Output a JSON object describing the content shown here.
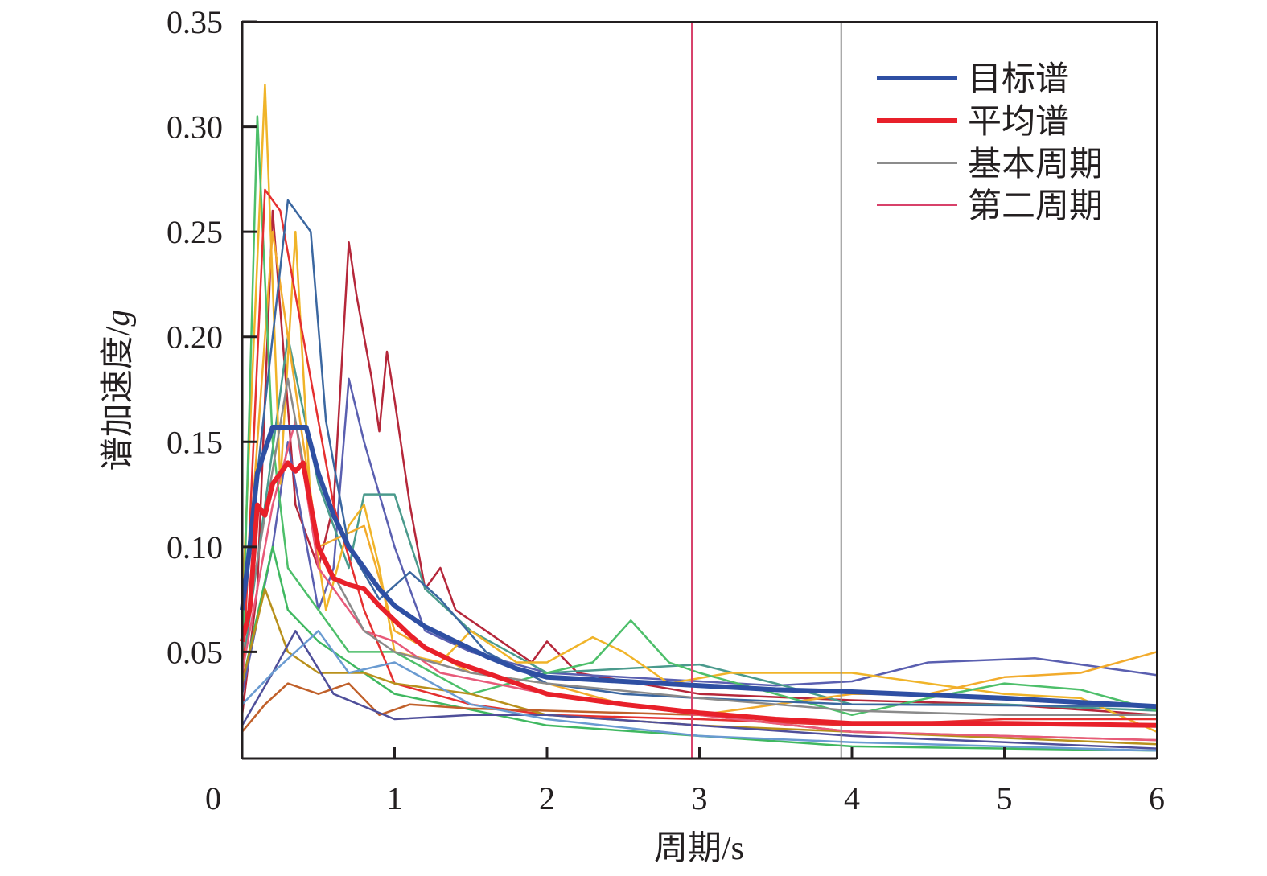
{
  "chart_data": {
    "type": "line",
    "xlabel": "周期/s",
    "ylabel": "谱加速度/",
    "ylabel_unit": "g",
    "xlim": [
      0,
      6
    ],
    "ylim": [
      0,
      0.35
    ],
    "x_ticks": [
      "0",
      "1",
      "2",
      "3",
      "4",
      "5",
      "6"
    ],
    "y_ticks": [
      "0.05",
      "0.10",
      "0.15",
      "0.20",
      "0.25",
      "0.30",
      "0.35"
    ],
    "grid": false,
    "legend_position": "top-right",
    "legend": [
      {
        "label": "目标谱",
        "color": "#2e4fa3"
      },
      {
        "label": "平均谱",
        "color": "#e8202a"
      },
      {
        "label": "基本周期",
        "color": "#8c8c8c"
      },
      {
        "label": "第二周期",
        "color": "#d8416a"
      }
    ],
    "vertical_lines": [
      {
        "name": "基本周期",
        "x": 3.93,
        "color": "#8c8c8c"
      },
      {
        "name": "第二周期",
        "x": 2.95,
        "color": "#d8416a"
      }
    ],
    "target_spectrum": {
      "name": "目标谱",
      "color": "#2e4fa3",
      "points": [
        [
          0,
          0.07
        ],
        [
          0.05,
          0.1
        ],
        [
          0.1,
          0.135
        ],
        [
          0.2,
          0.157
        ],
        [
          0.42,
          0.157
        ],
        [
          0.5,
          0.135
        ],
        [
          0.6,
          0.115
        ],
        [
          0.7,
          0.1
        ],
        [
          0.8,
          0.09
        ],
        [
          0.9,
          0.08
        ],
        [
          1.0,
          0.072
        ],
        [
          1.2,
          0.062
        ],
        [
          1.4,
          0.055
        ],
        [
          1.6,
          0.048
        ],
        [
          1.8,
          0.042
        ],
        [
          2.0,
          0.038
        ],
        [
          2.5,
          0.036
        ],
        [
          3.0,
          0.034
        ],
        [
          3.5,
          0.032
        ],
        [
          4.0,
          0.031
        ],
        [
          5.0,
          0.028
        ],
        [
          6.0,
          0.024
        ]
      ]
    },
    "mean_spectrum": {
      "name": "平均谱",
      "color": "#e8202a",
      "points": [
        [
          0,
          0.055
        ],
        [
          0.05,
          0.07
        ],
        [
          0.1,
          0.12
        ],
        [
          0.15,
          0.115
        ],
        [
          0.2,
          0.13
        ],
        [
          0.3,
          0.14
        ],
        [
          0.35,
          0.136
        ],
        [
          0.4,
          0.14
        ],
        [
          0.45,
          0.12
        ],
        [
          0.5,
          0.1
        ],
        [
          0.6,
          0.085
        ],
        [
          0.7,
          0.082
        ],
        [
          0.8,
          0.08
        ],
        [
          0.9,
          0.072
        ],
        [
          1.0,
          0.065
        ],
        [
          1.1,
          0.058
        ],
        [
          1.2,
          0.052
        ],
        [
          1.4,
          0.045
        ],
        [
          1.6,
          0.04
        ],
        [
          1.8,
          0.035
        ],
        [
          2.0,
          0.03
        ],
        [
          2.5,
          0.025
        ],
        [
          3.0,
          0.021
        ],
        [
          3.5,
          0.018
        ],
        [
          4.0,
          0.016
        ],
        [
          4.5,
          0.016
        ],
        [
          5.0,
          0.016
        ],
        [
          6.0,
          0.015
        ]
      ]
    },
    "records": [
      {
        "color": "#b5273a",
        "points": [
          [
            0,
            0.02
          ],
          [
            0.1,
            0.08
          ],
          [
            0.2,
            0.26
          ],
          [
            0.35,
            0.12
          ],
          [
            0.5,
            0.09
          ],
          [
            0.6,
            0.12
          ],
          [
            0.7,
            0.245
          ],
          [
            0.75,
            0.22
          ],
          [
            0.85,
            0.18
          ],
          [
            0.9,
            0.155
          ],
          [
            0.95,
            0.193
          ],
          [
            1.0,
            0.17
          ],
          [
            1.1,
            0.12
          ],
          [
            1.2,
            0.08
          ],
          [
            1.3,
            0.09
          ],
          [
            1.4,
            0.07
          ],
          [
            1.6,
            0.06
          ],
          [
            1.9,
            0.045
          ],
          [
            2.0,
            0.055
          ],
          [
            2.2,
            0.04
          ],
          [
            3.0,
            0.03
          ],
          [
            4.0,
            0.027
          ],
          [
            5.0,
            0.025
          ],
          [
            6.0,
            0.02
          ]
        ]
      },
      {
        "color": "#5a5fb0",
        "points": [
          [
            0,
            0.03
          ],
          [
            0.2,
            0.1
          ],
          [
            0.3,
            0.15
          ],
          [
            0.5,
            0.07
          ],
          [
            0.6,
            0.09
          ],
          [
            0.7,
            0.18
          ],
          [
            0.8,
            0.15
          ],
          [
            1.0,
            0.1
          ],
          [
            1.2,
            0.06
          ],
          [
            1.5,
            0.05
          ],
          [
            2.0,
            0.04
          ],
          [
            3.0,
            0.036
          ],
          [
            3.5,
            0.034
          ],
          [
            4.0,
            0.036
          ],
          [
            4.5,
            0.045
          ],
          [
            5.2,
            0.047
          ],
          [
            6.0,
            0.039
          ]
        ]
      },
      {
        "color": "#4a9a8c",
        "points": [
          [
            0,
            0.04
          ],
          [
            0.3,
            0.2
          ],
          [
            0.5,
            0.13
          ],
          [
            0.7,
            0.09
          ],
          [
            0.8,
            0.125
          ],
          [
            1.0,
            0.125
          ],
          [
            1.2,
            0.08
          ],
          [
            1.5,
            0.06
          ],
          [
            2.0,
            0.04
          ],
          [
            3.0,
            0.044
          ],
          [
            3.5,
            0.035
          ],
          [
            4.0,
            0.025
          ],
          [
            5.0,
            0.025
          ],
          [
            6.0,
            0.022
          ]
        ]
      },
      {
        "color": "#f0b429",
        "points": [
          [
            0,
            0.07
          ],
          [
            0.15,
            0.32
          ],
          [
            0.25,
            0.13
          ],
          [
            0.35,
            0.25
          ],
          [
            0.45,
            0.12
          ],
          [
            0.55,
            0.07
          ],
          [
            0.7,
            0.11
          ],
          [
            0.8,
            0.12
          ],
          [
            0.9,
            0.09
          ],
          [
            1.0,
            0.05
          ],
          [
            1.3,
            0.045
          ],
          [
            1.5,
            0.06
          ],
          [
            1.8,
            0.045
          ],
          [
            2.0,
            0.045
          ],
          [
            2.3,
            0.057
          ],
          [
            2.5,
            0.05
          ],
          [
            2.8,
            0.035
          ],
          [
            3.2,
            0.04
          ],
          [
            4.0,
            0.04
          ],
          [
            4.5,
            0.035
          ],
          [
            5.0,
            0.03
          ],
          [
            5.5,
            0.028
          ],
          [
            6.0,
            0.012
          ]
        ]
      },
      {
        "color": "#f2ab2c",
        "points": [
          [
            0,
            0.05
          ],
          [
            0.2,
            0.25
          ],
          [
            0.3,
            0.2
          ],
          [
            0.5,
            0.1
          ],
          [
            0.8,
            0.11
          ],
          [
            1.0,
            0.06
          ],
          [
            1.5,
            0.04
          ],
          [
            2.0,
            0.035
          ],
          [
            2.5,
            0.025
          ],
          [
            3.0,
            0.02
          ],
          [
            4.0,
            0.03
          ],
          [
            4.5,
            0.03
          ],
          [
            5.0,
            0.038
          ],
          [
            5.5,
            0.04
          ],
          [
            6.0,
            0.05
          ]
        ]
      },
      {
        "color": "#4dbf6a",
        "points": [
          [
            0,
            0.04
          ],
          [
            0.1,
            0.305
          ],
          [
            0.2,
            0.15
          ],
          [
            0.3,
            0.09
          ],
          [
            0.5,
            0.07
          ],
          [
            0.7,
            0.05
          ],
          [
            1.0,
            0.05
          ],
          [
            1.5,
            0.03
          ],
          [
            2.0,
            0.04
          ],
          [
            2.3,
            0.045
          ],
          [
            2.55,
            0.065
          ],
          [
            2.8,
            0.045
          ],
          [
            3.0,
            0.04
          ],
          [
            3.5,
            0.03
          ],
          [
            4.0,
            0.02
          ],
          [
            4.5,
            0.028
          ],
          [
            5.0,
            0.035
          ],
          [
            5.5,
            0.032
          ],
          [
            6.0,
            0.022
          ]
        ]
      },
      {
        "color": "#3fb860",
        "points": [
          [
            0,
            0.035
          ],
          [
            0.2,
            0.1
          ],
          [
            0.3,
            0.07
          ],
          [
            0.5,
            0.055
          ],
          [
            1.0,
            0.03
          ],
          [
            2.0,
            0.015
          ],
          [
            3.0,
            0.01
          ],
          [
            4.0,
            0.005
          ],
          [
            6.0,
            0.003
          ]
        ]
      },
      {
        "color": "#e53030",
        "points": [
          [
            0,
            0.03
          ],
          [
            0.15,
            0.27
          ],
          [
            0.25,
            0.26
          ],
          [
            0.4,
            0.2
          ],
          [
            0.6,
            0.12
          ],
          [
            0.8,
            0.07
          ],
          [
            1.0,
            0.035
          ],
          [
            1.5,
            0.025
          ],
          [
            2.0,
            0.02
          ],
          [
            3.0,
            0.018
          ],
          [
            4.0,
            0.015
          ],
          [
            5.0,
            0.018
          ],
          [
            6.0,
            0.018
          ]
        ]
      },
      {
        "color": "#3b67a0",
        "points": [
          [
            0,
            0.07
          ],
          [
            0.2,
            0.2
          ],
          [
            0.3,
            0.265
          ],
          [
            0.45,
            0.25
          ],
          [
            0.55,
            0.16
          ],
          [
            0.7,
            0.1
          ],
          [
            0.9,
            0.075
          ],
          [
            1.1,
            0.088
          ],
          [
            1.3,
            0.075
          ],
          [
            1.6,
            0.05
          ],
          [
            2.0,
            0.035
          ],
          [
            2.5,
            0.03
          ],
          [
            3.0,
            0.028
          ],
          [
            4.0,
            0.025
          ],
          [
            6.0,
            0.024
          ]
        ]
      },
      {
        "color": "#b8901c",
        "points": [
          [
            0,
            0.035
          ],
          [
            0.15,
            0.08
          ],
          [
            0.3,
            0.05
          ],
          [
            0.5,
            0.04
          ],
          [
            0.8,
            0.04
          ],
          [
            1.0,
            0.035
          ],
          [
            1.5,
            0.03
          ],
          [
            2.0,
            0.02
          ],
          [
            3.0,
            0.015
          ],
          [
            4.0,
            0.012
          ],
          [
            6.0,
            0.006
          ]
        ]
      },
      {
        "color": "#c0602a",
        "points": [
          [
            0,
            0.012
          ],
          [
            0.15,
            0.025
          ],
          [
            0.3,
            0.035
          ],
          [
            0.5,
            0.03
          ],
          [
            0.7,
            0.035
          ],
          [
            0.9,
            0.02
          ],
          [
            1.1,
            0.025
          ],
          [
            1.5,
            0.023
          ],
          [
            2.0,
            0.022
          ],
          [
            3.0,
            0.02
          ],
          [
            4.0,
            0.012
          ],
          [
            6.0,
            0.008
          ]
        ]
      },
      {
        "color": "#4f4f9a",
        "points": [
          [
            0,
            0.015
          ],
          [
            0.2,
            0.04
          ],
          [
            0.35,
            0.06
          ],
          [
            0.6,
            0.03
          ],
          [
            1.0,
            0.018
          ],
          [
            1.5,
            0.02
          ],
          [
            2.0,
            0.02
          ],
          [
            3.0,
            0.015
          ],
          [
            4.0,
            0.01
          ],
          [
            6.0,
            0.004
          ]
        ]
      },
      {
        "color": "#6a9bd1",
        "points": [
          [
            0,
            0.025
          ],
          [
            0.2,
            0.04
          ],
          [
            0.5,
            0.06
          ],
          [
            0.7,
            0.04
          ],
          [
            1.0,
            0.045
          ],
          [
            1.5,
            0.025
          ],
          [
            2.0,
            0.018
          ],
          [
            3.0,
            0.01
          ],
          [
            4.0,
            0.007
          ],
          [
            6.0,
            0.003
          ]
        ]
      },
      {
        "color": "#e85a7a",
        "points": [
          [
            0,
            0.04
          ],
          [
            0.2,
            0.12
          ],
          [
            0.35,
            0.16
          ],
          [
            0.5,
            0.09
          ],
          [
            0.8,
            0.06
          ],
          [
            1.0,
            0.055
          ],
          [
            1.3,
            0.04
          ],
          [
            2.0,
            0.03
          ],
          [
            3.0,
            0.02
          ],
          [
            4.0,
            0.012
          ],
          [
            6.0,
            0.008
          ]
        ]
      },
      {
        "color": "#8a8a8a",
        "points": [
          [
            0,
            0.05
          ],
          [
            0.3,
            0.18
          ],
          [
            0.5,
            0.1
          ],
          [
            0.8,
            0.06
          ],
          [
            1.0,
            0.05
          ],
          [
            1.5,
            0.04
          ],
          [
            2.0,
            0.035
          ],
          [
            3.0,
            0.028
          ],
          [
            4.0,
            0.022
          ],
          [
            5.0,
            0.02
          ],
          [
            6.0,
            0.02
          ]
        ]
      }
    ]
  }
}
